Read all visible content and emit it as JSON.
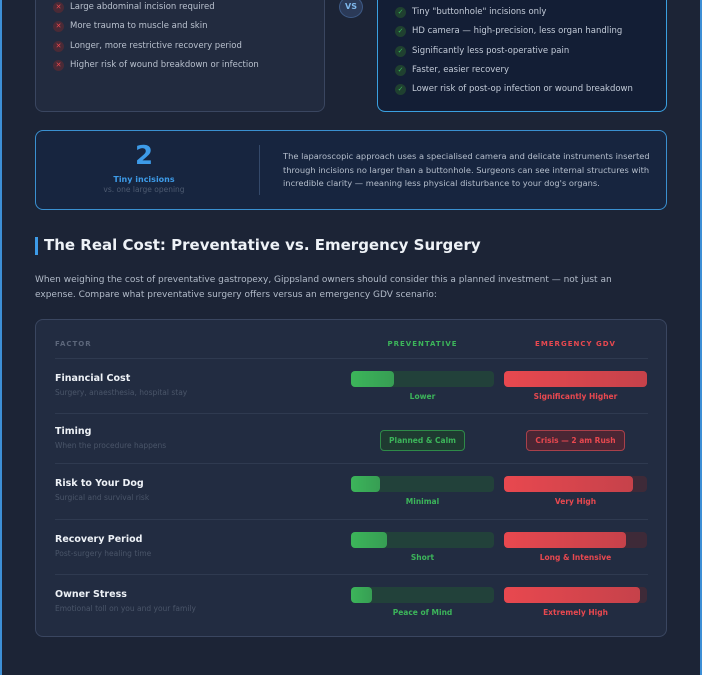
{
  "comparison": {
    "traditional_items": [
      "Large abdominal incision required",
      "More trauma to muscle and skin",
      "Longer, more restrictive recovery period",
      "Higher risk of wound breakdown or infection"
    ],
    "vs": "VS",
    "laparoscopic_items": [
      "Tiny \"buttonhole\" incisions only",
      "HD camera — high-precision, less organ handling",
      "Significantly less post-operative pain",
      "Faster, easier recovery",
      "Lower risk of post-op infection or wound breakdown"
    ]
  },
  "stat": {
    "value": 2,
    "label": "Tiny incisions",
    "sublabel": "vs. one large opening",
    "text": "The laparoscopic approach uses a specialised camera and delicate instruments inserted through incisions no larger than a buttonhole. Surgeons can see internal structures with incredible clarity — meaning less physical disturbance to your dog's organs."
  },
  "section": {
    "title": "The Real Cost: Preventative vs. Emergency Surgery",
    "intro": "When weighing the cost of preventative gastropexy, Gippsland owners should consider this a planned investment — not just an expense. Compare what preventative surgery offers versus an emergency GDV scenario:"
  },
  "table": {
    "headers": [
      "FACTOR",
      "PREVENTATIVE",
      "EMERGENCY GDV"
    ],
    "rows": [
      {
        "factor": "Financial Cost",
        "detail": "Surgery, anaesthesia, hospital stay",
        "preventative": {
          "fill": 30,
          "label": "Lower"
        },
        "emergency": {
          "fill": 100,
          "label": "Significantly Higher"
        }
      },
      {
        "factor": "Timing",
        "detail": "When the procedure happens",
        "preventative": {
          "badge": "Planned & Calm"
        },
        "emergency": {
          "badge": "Crisis — 2 am Rush"
        }
      },
      {
        "factor": "Risk to Your Dog",
        "detail": "Surgical and survival risk",
        "preventative": {
          "fill": 20,
          "label": "Minimal"
        },
        "emergency": {
          "fill": 90,
          "label": "Very High"
        }
      },
      {
        "factor": "Recovery Period",
        "detail": "Post-surgery healing time",
        "preventative": {
          "fill": 25,
          "label": "Short"
        },
        "emergency": {
          "fill": 85,
          "label": "Long & Intensive"
        }
      },
      {
        "factor": "Owner Stress",
        "detail": "Emotional toll on you and your family",
        "preventative": {
          "fill": 15,
          "label": "Peace of Mind"
        },
        "emergency": {
          "fill": 95,
          "label": "Extremely High"
        }
      }
    ]
  }
}
